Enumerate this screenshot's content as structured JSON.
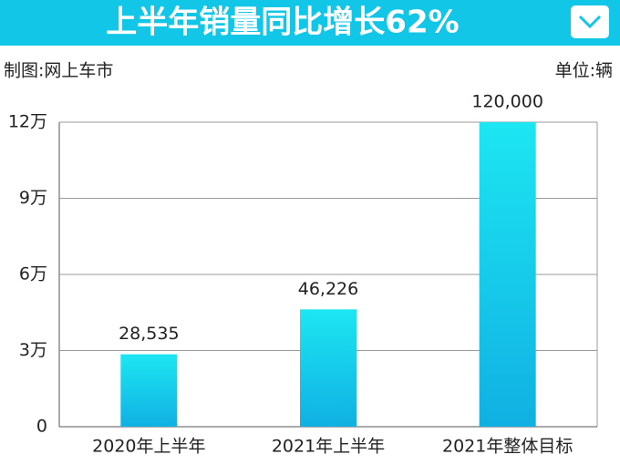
{
  "chart_data": {
    "type": "bar",
    "title": "上半年销量同比增长62%",
    "source": "制图:网上车市",
    "unit": "单位:辆",
    "categories": [
      "2020年上半年",
      "2021年上半年",
      "2021年整体目标"
    ],
    "values": [
      28535,
      46226,
      120000
    ],
    "value_labels": [
      "28,535",
      "46,226",
      "120,000"
    ],
    "color": "#1de6f2",
    "ylim": [
      0,
      120000
    ],
    "yticks": [
      0,
      {
        "value": 30000,
        "label": "3万"
      },
      {
        "value": 60000,
        "label": "6万"
      },
      {
        "value": 90000,
        "label": "9万"
      },
      {
        "value": 120000,
        "label": "12万"
      }
    ],
    "grid": true
  }
}
